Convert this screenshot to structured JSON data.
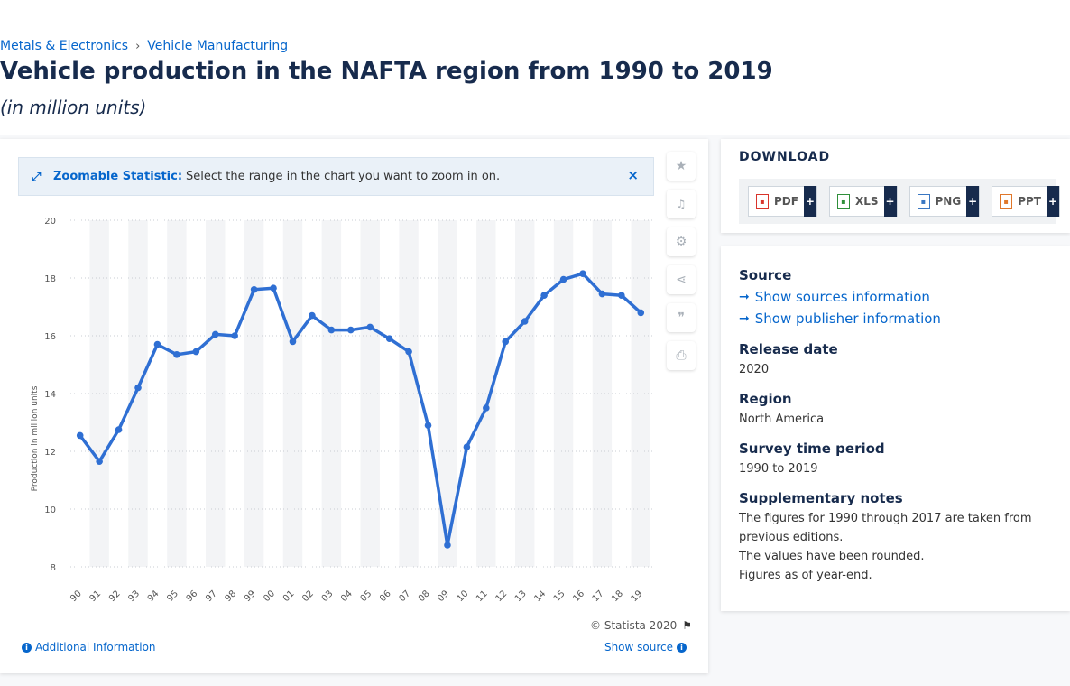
{
  "breadcrumb": {
    "items": [
      "Metals & Electronics",
      "Vehicle Manufacturing"
    ],
    "separator": "›"
  },
  "header": {
    "title": "Vehicle production in the NAFTA region from 1990 to 2019",
    "subtitle": "(in million units)"
  },
  "zoom_banner": {
    "strong": "Zoomable Statistic:",
    "text": "Select the range in the chart you want to zoom in on.",
    "close": "×"
  },
  "side_tools": [
    {
      "icon": "star-icon",
      "glyph": "★"
    },
    {
      "icon": "bell-icon",
      "glyph": "🔔"
    },
    {
      "icon": "gear-icon",
      "glyph": "⚙"
    },
    {
      "icon": "share-icon",
      "glyph": "⋖"
    },
    {
      "icon": "quote-icon",
      "glyph": "❞"
    },
    {
      "icon": "print-icon",
      "glyph": "⎙"
    }
  ],
  "footer": {
    "copyright": "© Statista 2020",
    "additional_info": "Additional Information",
    "show_source": "Show source"
  },
  "download": {
    "title": "DOWNLOAD",
    "buttons": [
      {
        "label": "PDF",
        "color": "#d9342b"
      },
      {
        "label": "XLS",
        "color": "#2f8f3a"
      },
      {
        "label": "PNG",
        "color": "#3a77c2"
      },
      {
        "label": "PPT",
        "color": "#e0772a"
      }
    ],
    "plus": "+"
  },
  "meta": {
    "source_label": "Source",
    "show_sources": "Show sources information",
    "show_publisher": "Show publisher information",
    "release_label": "Release date",
    "release_value": "2020",
    "region_label": "Region",
    "region_value": "North America",
    "survey_label": "Survey time period",
    "survey_value": "1990 to 2019",
    "notes_label": "Supplementary notes",
    "notes": [
      "The figures for 1990 through 2017 are taken from previous editions.",
      "The values have been rounded.",
      "Figures as of year-end."
    ]
  },
  "colors": {
    "line": "#2f6fd3",
    "link": "#0666cc",
    "title": "#172b4d"
  },
  "chart_data": {
    "type": "line",
    "title": "",
    "ylabel": "Production in million units",
    "xlabel": "",
    "categories": [
      "90",
      "91",
      "92",
      "93",
      "94",
      "95",
      "96",
      "97",
      "98",
      "99",
      "00",
      "01",
      "02",
      "03",
      "04",
      "05",
      "06",
      "07",
      "08",
      "09",
      "10",
      "11",
      "12",
      "13",
      "14",
      "15",
      "16",
      "17",
      "18",
      "19"
    ],
    "series": [
      {
        "values": [
          12.55,
          11.65,
          12.75,
          14.2,
          15.7,
          15.35,
          15.45,
          16.05,
          16.0,
          17.6,
          17.65,
          15.8,
          16.7,
          16.2,
          16.2,
          16.3,
          15.9,
          15.45,
          12.9,
          8.75,
          12.15,
          13.5,
          15.8,
          16.5,
          17.4,
          17.95,
          18.15,
          17.45,
          17.4,
          16.8
        ]
      }
    ],
    "ylim": [
      8,
      20
    ],
    "yticks": [
      8,
      10,
      12,
      14,
      16,
      18,
      20
    ],
    "grid": true
  }
}
